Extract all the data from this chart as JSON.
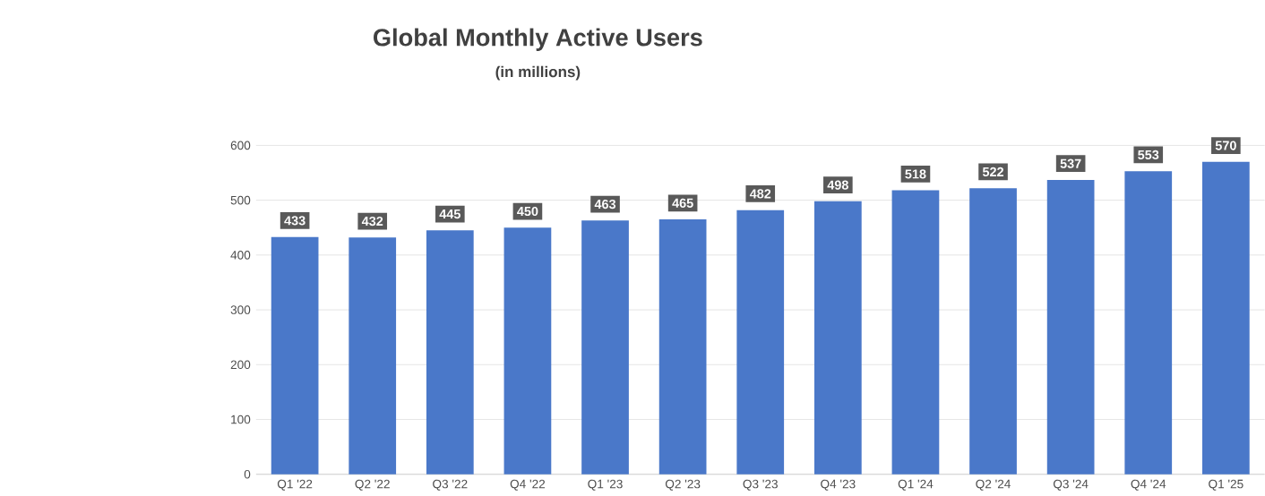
{
  "chart_data": {
    "type": "bar",
    "title": "Global Monthly Active Users",
    "subtitle": "(in millions)",
    "categories": [
      "Q1 '22",
      "Q2 '22",
      "Q3 '22",
      "Q4 '22",
      "Q1 '23",
      "Q2 '23",
      "Q3 '23",
      "Q4 '23",
      "Q1 '24",
      "Q2 '24",
      "Q3 '24",
      "Q4 '24",
      "Q1 '25"
    ],
    "values": [
      433,
      432,
      445,
      450,
      463,
      465,
      482,
      498,
      518,
      522,
      537,
      553,
      570
    ],
    "color": "#4a78c9",
    "ylim": [
      0,
      600
    ],
    "yticks": [
      0,
      100,
      200,
      300,
      400,
      500,
      600
    ],
    "grid": "y",
    "data_labels": true
  }
}
